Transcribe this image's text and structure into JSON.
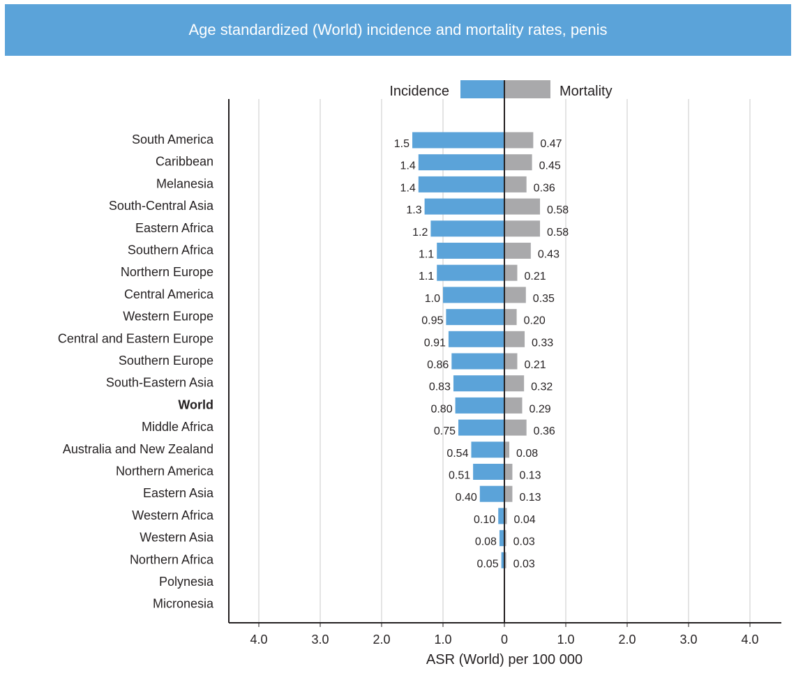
{
  "header": {
    "title": "Age standardized (World) incidence and mortality rates, penis"
  },
  "colors": {
    "header_bg": "#5ba3d9",
    "incidence": "#5ba3d9",
    "mortality": "#a9a9ab",
    "axis": "#231f20",
    "grid": "#c8c8c8"
  },
  "chart_data": {
    "type": "bar",
    "orientation": "horizontal-diverging",
    "title": "Age standardized (World) incidence and mortality rates, penis",
    "xlabel": "ASR (World) per 100 000",
    "xlim": [
      -4.5,
      4.5
    ],
    "x_ticks": [
      -4,
      -3,
      -2,
      -1,
      0,
      1,
      2,
      3,
      4
    ],
    "x_tick_labels": [
      "4.0",
      "3.0",
      "2.0",
      "1.0",
      "0",
      "1.0",
      "2.0",
      "3.0",
      "4.0"
    ],
    "grid": true,
    "legend_position": "top-center",
    "categories": [
      "South America",
      "Caribbean",
      "Melanesia",
      "South-Central Asia",
      "Eastern Africa",
      "Southern Africa",
      "Northern Europe",
      "Central America",
      "Western Europe",
      "Central and Eastern Europe",
      "Southern Europe",
      "South-Eastern Asia",
      "World",
      "Middle Africa",
      "Australia and New Zealand",
      "Northern America",
      "Eastern Asia",
      "Western Africa",
      "Western Asia",
      "Northern Africa",
      "Polynesia",
      "Micronesia"
    ],
    "bold_categories": [
      "World"
    ],
    "series": [
      {
        "name": "Incidence",
        "side": "left",
        "color": "#5ba3d9",
        "values": [
          1.5,
          1.4,
          1.4,
          1.3,
          1.2,
          1.1,
          1.1,
          1.0,
          0.95,
          0.91,
          0.86,
          0.83,
          0.8,
          0.75,
          0.54,
          0.51,
          0.4,
          0.1,
          0.08,
          0.05,
          null,
          null
        ],
        "labels": [
          "1.5",
          "1.4",
          "1.4",
          "1.3",
          "1.2",
          "1.1",
          "1.1",
          "1.0",
          "0.95",
          "0.91",
          "0.86",
          "0.83",
          "0.80",
          "0.75",
          "0.54",
          "0.51",
          "0.40",
          "0.10",
          "0.08",
          "0.05",
          "",
          ""
        ]
      },
      {
        "name": "Mortality",
        "side": "right",
        "color": "#a9a9ab",
        "values": [
          0.47,
          0.45,
          0.36,
          0.58,
          0.58,
          0.43,
          0.21,
          0.35,
          0.2,
          0.33,
          0.21,
          0.32,
          0.29,
          0.36,
          0.08,
          0.13,
          0.13,
          0.04,
          0.03,
          0.03,
          null,
          null
        ],
        "labels": [
          "0.47",
          "0.45",
          "0.36",
          "0.58",
          "0.58",
          "0.43",
          "0.21",
          "0.35",
          "0.20",
          "0.33",
          "0.21",
          "0.32",
          "0.29",
          "0.36",
          "0.08",
          "0.13",
          "0.13",
          "0.04",
          "0.03",
          "0.03",
          "",
          ""
        ]
      }
    ]
  }
}
